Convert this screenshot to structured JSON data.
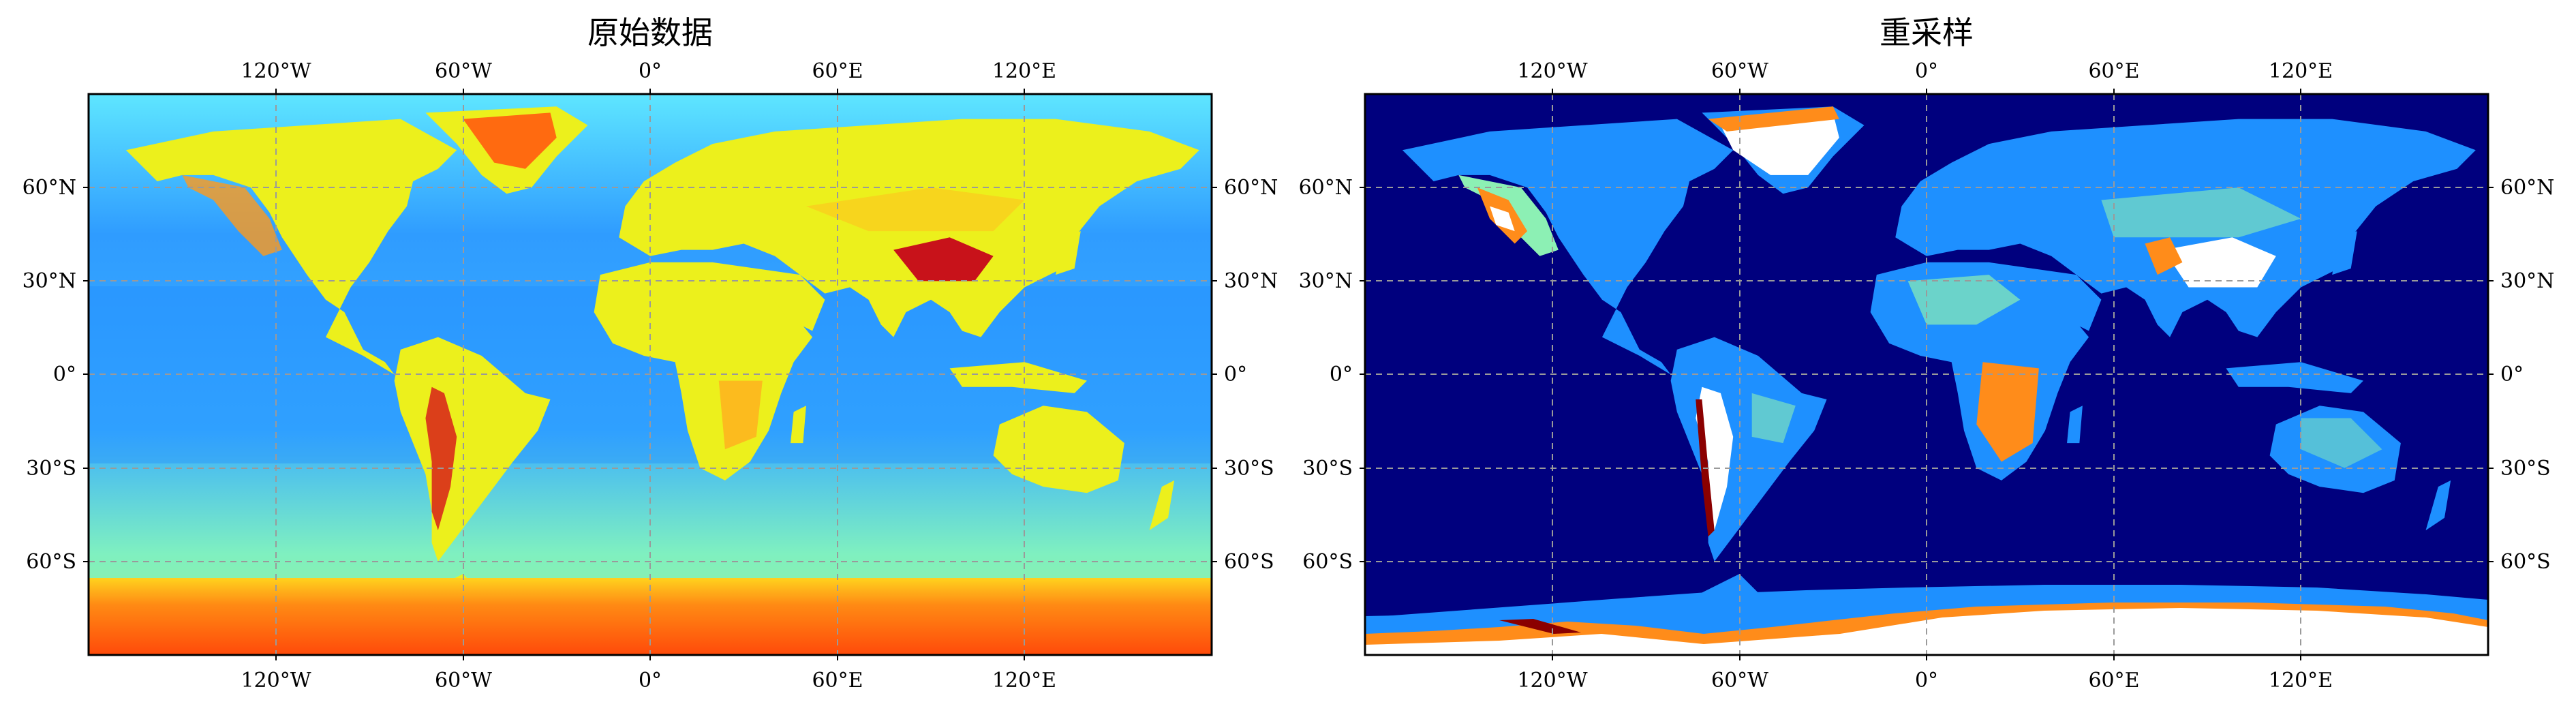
{
  "panels": [
    {
      "id": "original",
      "title": "原始数据",
      "bottom_labels": [
        "120°W",
        "60°W",
        "0°",
        "60°E",
        "120°E"
      ],
      "top_labels": [
        "120°W",
        "60°W",
        "0°",
        "60°E",
        "120°E"
      ],
      "left_labels": [
        "60°N",
        "30°N",
        "0°",
        "30°S",
        "60°S"
      ],
      "right_labels": [
        "60°N",
        "30°N",
        "0°",
        "30°S",
        "60°S"
      ]
    },
    {
      "id": "resampled",
      "title": "重采样",
      "bottom_labels": [
        "120°W",
        "60°W",
        "0°",
        "60°E",
        "120°E"
      ],
      "top_labels": [
        "120°W",
        "60°W",
        "0°",
        "60°E",
        "120°E"
      ],
      "left_labels": [
        "60°N",
        "30°N",
        "0°",
        "30°S",
        "60°S"
      ],
      "right_labels": [
        "60°N",
        "30°N",
        "0°",
        "30°S",
        "60°S"
      ]
    }
  ],
  "map": {
    "projection": "plate-carree",
    "lon_range": [
      -180,
      180
    ],
    "lat_range": [
      -90,
      90
    ],
    "gridlines": true,
    "gridline_lons": [
      -120,
      -60,
      0,
      60,
      120
    ],
    "gridline_lats": [
      60,
      30,
      0,
      -30,
      -60
    ],
    "colormap": "jet",
    "colors": {
      "ocean_original": "#2aa6ff",
      "land_original": "#f2f01e",
      "ocean_resampled": "#00007e",
      "shelf_resampled": "#1e90ff",
      "high_resampled": "#ff8c1a",
      "peak_resampled": "#ffffff",
      "antarctica_original": "#ff6a10",
      "grid": "#9a9a9a"
    }
  }
}
